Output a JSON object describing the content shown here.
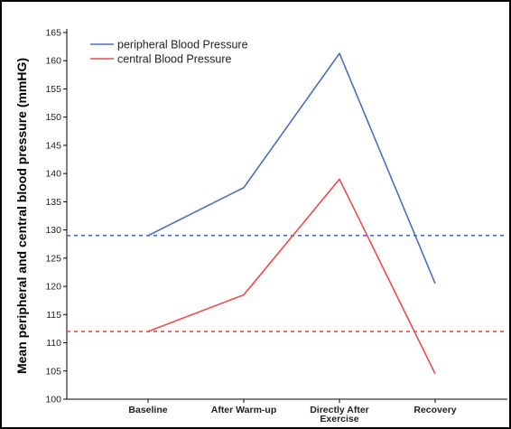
{
  "chart_data": {
    "type": "line",
    "title": "",
    "xlabel": "",
    "ylabel": "Mean peripheral and central blood pressure (mmHG)",
    "categories": [
      "Baseline",
      "After Warm-up",
      "Directly After\nExercise",
      "Recovery"
    ],
    "ylim": [
      100,
      165
    ],
    "yticks": [
      100,
      105,
      110,
      115,
      120,
      125,
      130,
      135,
      140,
      145,
      150,
      155,
      160,
      165
    ],
    "grid": false,
    "legend_position": "top-left",
    "series": [
      {
        "name": "peripheral Blood Pressure",
        "color": "#4a6fc1",
        "values": [
          129,
          137.5,
          161.3,
          120.5
        ]
      },
      {
        "name": "central Blood Pressure",
        "color": "#f04a4a",
        "values": [
          112,
          118.5,
          139,
          104.5
        ]
      }
    ],
    "reference_lines": [
      {
        "value": 129,
        "color": "#4a6fc1",
        "style": "dotted"
      },
      {
        "value": 112,
        "color": "#f04a4a",
        "style": "dotted"
      }
    ]
  }
}
